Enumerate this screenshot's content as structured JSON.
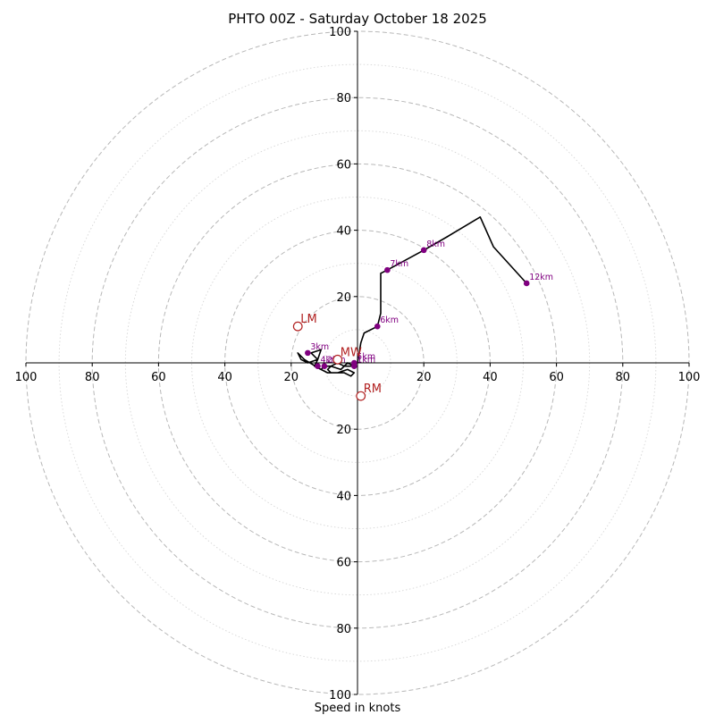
{
  "chart_data": {
    "type": "hodograph",
    "title": "PHTO 00Z - Saturday October 18 2025",
    "xlabel": "Speed in knots",
    "max_speed": 100,
    "ring_step_dashed": 20,
    "ring_step_dotted": 10,
    "ticks": [
      20,
      40,
      60,
      80,
      100
    ],
    "tick_labels": [
      "20",
      "40",
      "60",
      "80",
      "100"
    ],
    "colors": {
      "trace": "#000000",
      "height_marker": "#800080",
      "motion_marker": "#b22222",
      "ring": "#b8b8b8"
    },
    "hodograph": [
      [
        -1,
        -1
      ],
      [
        -3,
        0
      ],
      [
        -5,
        -2
      ],
      [
        -8,
        -1
      ],
      [
        -10,
        -1
      ],
      [
        -11,
        -2
      ],
      [
        -13,
        -1
      ],
      [
        -12,
        1
      ],
      [
        -14,
        3
      ],
      [
        -11,
        4
      ],
      [
        -12,
        1
      ],
      [
        -15,
        0
      ],
      [
        -17,
        1
      ],
      [
        -18,
        3
      ],
      [
        -16,
        1
      ],
      [
        -11,
        -2
      ],
      [
        -9,
        -3
      ],
      [
        -8,
        -3
      ],
      [
        -6,
        -3
      ],
      [
        -3,
        -2
      ],
      [
        -1,
        -3
      ],
      [
        -2,
        -4
      ],
      [
        -4,
        -3
      ],
      [
        -7,
        -3
      ],
      [
        -8,
        -3
      ],
      [
        -9,
        -2
      ],
      [
        -8,
        -1
      ],
      [
        -6,
        0
      ],
      [
        -4,
        -1
      ],
      [
        -2,
        -1
      ],
      [
        0,
        0
      ],
      [
        1,
        6
      ],
      [
        2,
        9
      ],
      [
        6,
        11
      ],
      [
        7,
        15
      ],
      [
        7,
        27
      ],
      [
        9,
        28
      ],
      [
        20,
        34
      ],
      [
        27,
        38
      ],
      [
        37,
        44
      ],
      [
        41,
        35
      ],
      [
        51,
        24
      ]
    ],
    "height_markers": [
      {
        "label": "1km",
        "u": -1,
        "v": -1
      },
      {
        "label": "2km",
        "u": -10,
        "v": -1
      },
      {
        "label": "3km",
        "u": -15,
        "v": 3
      },
      {
        "label": "4km",
        "u": -12,
        "v": -1
      },
      {
        "label": "5km",
        "u": -1,
        "v": 0
      },
      {
        "label": "6km",
        "u": 6,
        "v": 11
      },
      {
        "label": "7km",
        "u": 9,
        "v": 28
      },
      {
        "label": "8km",
        "u": 20,
        "v": 34
      },
      {
        "label": "12km",
        "u": 51,
        "v": 24
      }
    ],
    "storm_motion": [
      {
        "label": "LM",
        "u": -18,
        "v": 11
      },
      {
        "label": "MW",
        "u": -6,
        "v": 1
      },
      {
        "label": "RM",
        "u": 1,
        "v": -10
      }
    ]
  }
}
